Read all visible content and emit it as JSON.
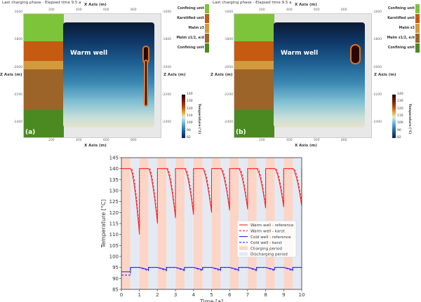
{
  "panels": [
    {
      "id": "a",
      "label": "(a)",
      "title": "Last charging phase - Elapsed time 9.5 a",
      "well_label": "Warm well"
    },
    {
      "id": "b",
      "label": "(b)",
      "title": "Last charging phase - Elapsed time 9.5 a",
      "well_label": "Warm well"
    }
  ],
  "render_axes": {
    "x_label": "X Axis (m)",
    "z_label": "Z Axis (m)",
    "x_ticks": [
      "200",
      "400",
      "600",
      "800"
    ],
    "z_ticks": [
      "-1600",
      "-1800",
      "-2000",
      "-2200",
      "-2400"
    ]
  },
  "units": [
    {
      "label": "Confining unit",
      "color": "#7dc43a"
    },
    {
      "label": "Karstified unit",
      "color": "#c55a11"
    },
    {
      "label": "Malm z3",
      "color": "#d39a3c"
    },
    {
      "label": "Malm z1/2, e/d",
      "color": "#9c6428"
    },
    {
      "label": "Confining unit",
      "color": "#4a8a20"
    }
  ],
  "colorbar": {
    "label": "Temperature (°C)",
    "ticks": [
      "140",
      "130",
      "120",
      "110",
      "100",
      "90",
      "82"
    ],
    "min": 82,
    "max": 140
  },
  "chart_data": {
    "type": "line",
    "xlabel": "Time [a]",
    "ylabel": "Temperature [°C]",
    "xlim": [
      0,
      10
    ],
    "ylim": [
      85,
      145
    ],
    "xticks": [
      "0",
      "1",
      "2",
      "3",
      "4",
      "5",
      "6",
      "7",
      "8",
      "9",
      "10"
    ],
    "yticks": [
      "85",
      "90",
      "95",
      "100",
      "105",
      "110",
      "115",
      "120",
      "125",
      "130",
      "135",
      "140",
      "145"
    ],
    "charging_periods": [
      [
        0,
        0.5
      ],
      [
        1,
        1.5
      ],
      [
        2,
        2.5
      ],
      [
        3,
        3.5
      ],
      [
        4,
        4.5
      ],
      [
        5,
        5.5
      ],
      [
        6,
        6.5
      ],
      [
        7,
        7.5
      ],
      [
        8,
        8.5
      ],
      [
        9,
        9.5
      ]
    ],
    "discharging_periods": [
      [
        0.5,
        1
      ],
      [
        1.5,
        2
      ],
      [
        2.5,
        3
      ],
      [
        3.5,
        4
      ],
      [
        4.5,
        5
      ],
      [
        5.5,
        6
      ],
      [
        6.5,
        7
      ],
      [
        7.5,
        8
      ],
      [
        8.5,
        9
      ],
      [
        9.5,
        10
      ]
    ],
    "series": [
      {
        "name": "Warm well - reference",
        "color": "#ff2020",
        "dash": "solid",
        "plateau": 140,
        "cycle_minima": [
          110,
          115,
          117.5,
          119,
          120,
          121,
          121.5,
          122,
          122.5,
          123
        ]
      },
      {
        "name": "Warm well - karst",
        "color": "#ff2020",
        "dash": "dashed",
        "plateau": 140,
        "cycle_minima": [
          112,
          116,
          118.5,
          120,
          121,
          122,
          122.5,
          123,
          123.5,
          124.5
        ]
      },
      {
        "name": "Cold well - reference",
        "color": "#2020ff",
        "dash": "solid",
        "initial": 93,
        "plateau": 95,
        "cycle_dip": 94
      },
      {
        "name": "Cold well - karst",
        "color": "#2020ff",
        "dash": "dashed",
        "initial": 91.5,
        "plateau": 95,
        "cycle_dip": 93.5
      }
    ],
    "legend_extra": [
      {
        "name": "Charging period",
        "color": "#fcd5c6"
      },
      {
        "name": "Discharging period",
        "color": "#e3eaf4"
      }
    ],
    "legend_position": "center-right"
  }
}
